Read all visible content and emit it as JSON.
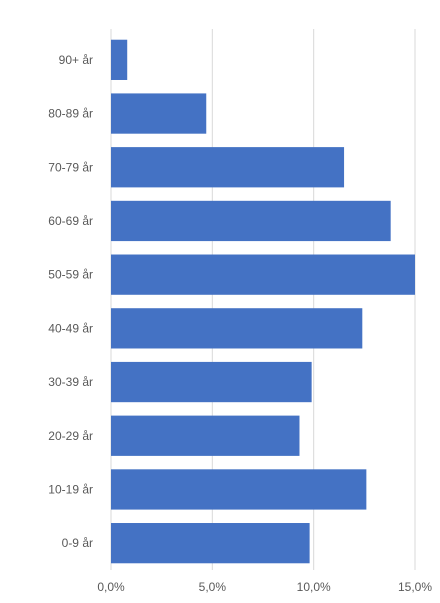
{
  "chart_data": {
    "type": "bar",
    "orientation": "horizontal",
    "categories": [
      "0-9 år",
      "10-19 år",
      "20-29 år",
      "30-39 år",
      "40-49 år",
      "50-59 år",
      "60-69 år",
      "70-79 år",
      "80-89 år",
      "90+ år"
    ],
    "values": [
      9.8,
      12.6,
      9.3,
      9.9,
      12.4,
      15.0,
      13.8,
      11.5,
      4.7,
      0.8
    ],
    "xlim": [
      0,
      15
    ],
    "x_ticks": [
      0,
      5,
      10,
      15
    ],
    "x_tick_labels": [
      "0,0%",
      "5,0%",
      "10,0%",
      "15,0%"
    ],
    "grid": "vertical",
    "bar_color": "#4472C4",
    "grid_color": "#D9D9D9",
    "legend": "none"
  }
}
